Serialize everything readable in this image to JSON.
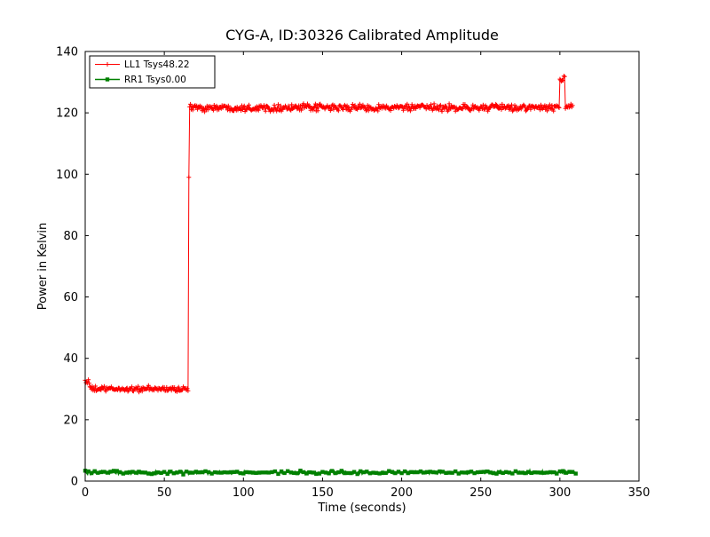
{
  "chart_data": {
    "type": "line",
    "title": "CYG-A, ID:30326 Calibrated Amplitude",
    "xlabel": "Time (seconds)",
    "ylabel": "Power in Kelvin",
    "xlim": [
      0,
      350
    ],
    "ylim": [
      0,
      140
    ],
    "xticks": [
      0,
      50,
      100,
      150,
      200,
      250,
      300,
      350
    ],
    "yticks": [
      0,
      20,
      40,
      60,
      80,
      100,
      120,
      140
    ],
    "grid": false,
    "legend_position": "upper left",
    "series": [
      {
        "id": "LL1",
        "name": "LL1 Tsys48.22",
        "color": "#ff0000",
        "marker": "+",
        "line_width": 1,
        "dt": 0.5,
        "marker_every": 1,
        "segments": [
          {
            "t0": 0,
            "t1": 3,
            "mean": 32.6,
            "noise": 0.7
          },
          {
            "t0": 3,
            "t1": 65.5,
            "mean": 30.0,
            "noise": 0.45
          },
          {
            "t0": 65.5,
            "t1": 66,
            "mean": 99.0,
            "noise": 0.0
          },
          {
            "t0": 66,
            "t1": 300,
            "mean": 121.7,
            "noise": 0.55
          },
          {
            "t0": 300,
            "t1": 303.5,
            "mean": 131.2,
            "noise": 0.7
          },
          {
            "t0": 303.5,
            "t1": 308,
            "mean": 121.9,
            "noise": 0.4
          }
        ]
      },
      {
        "id": "RR1",
        "name": "RR1 Tsys0.00",
        "color": "#008000",
        "marker": "s",
        "line_width": 1.5,
        "dt": 0.5,
        "marker_every": 4,
        "segments": [
          {
            "t0": 0,
            "t1": 310,
            "mean": 2.8,
            "noise": 0.25
          }
        ]
      }
    ]
  }
}
